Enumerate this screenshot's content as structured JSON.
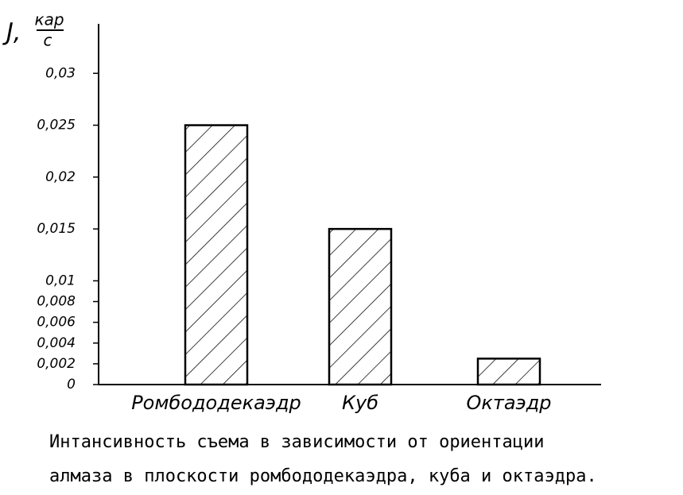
{
  "chart_data": {
    "type": "bar",
    "y_label": {
      "symbol": "J,",
      "numerator": "кар",
      "denominator": "с"
    },
    "categories": [
      "Ромбододекаэдр",
      "Куб",
      "Октаэдр"
    ],
    "values": [
      0.025,
      0.015,
      0.0025
    ],
    "color": "#000000",
    "ylim": [
      0,
      0.035
    ],
    "yticks": [
      0,
      {
        "value": 0.002,
        "label": "0,002"
      },
      {
        "value": 0.004,
        "label": "0,004"
      },
      {
        "value": 0.006,
        "label": "0,006"
      },
      {
        "value": 0.008,
        "label": "0,008"
      },
      {
        "value": 0.01,
        "label": "0,01"
      },
      {
        "value": 0.015,
        "label": "0,015"
      },
      {
        "value": 0.02,
        "label": "0,02"
      },
      {
        "value": 0.025,
        "label": "0,025"
      },
      {
        "value": 0.03,
        "label": "0,03"
      }
    ],
    "caption": [
      "Интансивность съема в зависимости от ориентации",
      "алмаза в плоскости ромбододекаэдра, куба и октаэдра."
    ]
  }
}
